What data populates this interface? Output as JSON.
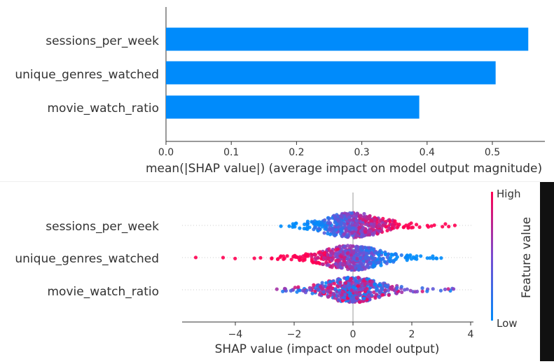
{
  "chart_data": [
    {
      "type": "bar",
      "orientation": "horizontal",
      "categories": [
        "sessions_per_week",
        "unique_genres_watched",
        "movie_watch_ratio"
      ],
      "values": [
        0.555,
        0.505,
        0.388
      ],
      "xlabel": "mean(|SHAP value|) (average impact on model output magnitude)",
      "xlim": [
        0.0,
        0.58
      ],
      "xticks": [
        0.0,
        0.1,
        0.2,
        0.3,
        0.4,
        0.5
      ],
      "xtick_labels": [
        "0.0",
        "0.1",
        "0.2",
        "0.3",
        "0.4",
        "0.5"
      ],
      "bar_color": "#008bfb",
      "grid": false
    },
    {
      "type": "scatter",
      "subtype": "beeswarm",
      "categories": [
        "sessions_per_week",
        "unique_genres_watched",
        "movie_watch_ratio"
      ],
      "xlabel": "SHAP value (impact on model output)",
      "xlim": [
        -5.9,
        4.1
      ],
      "xticks": [
        -4,
        -2,
        0,
        2,
        4
      ],
      "xtick_labels": [
        "−4",
        "−2",
        "0",
        "2",
        "4"
      ],
      "zero_line": 0,
      "feature_ranges": [
        {
          "name": "sessions_per_week",
          "min": -2.5,
          "max": 3.6,
          "low_side": "negative"
        },
        {
          "name": "unique_genres_watched",
          "min": -5.4,
          "max": 3.4,
          "low_side": "positive"
        },
        {
          "name": "movie_watch_ratio",
          "min": -2.6,
          "max": 3.5,
          "low_side": "mixed"
        }
      ],
      "colorbar": {
        "label": "Feature value",
        "high_label": "High",
        "low_label": "Low",
        "high_color": "#ff0052",
        "low_color": "#008bfb"
      }
    }
  ]
}
